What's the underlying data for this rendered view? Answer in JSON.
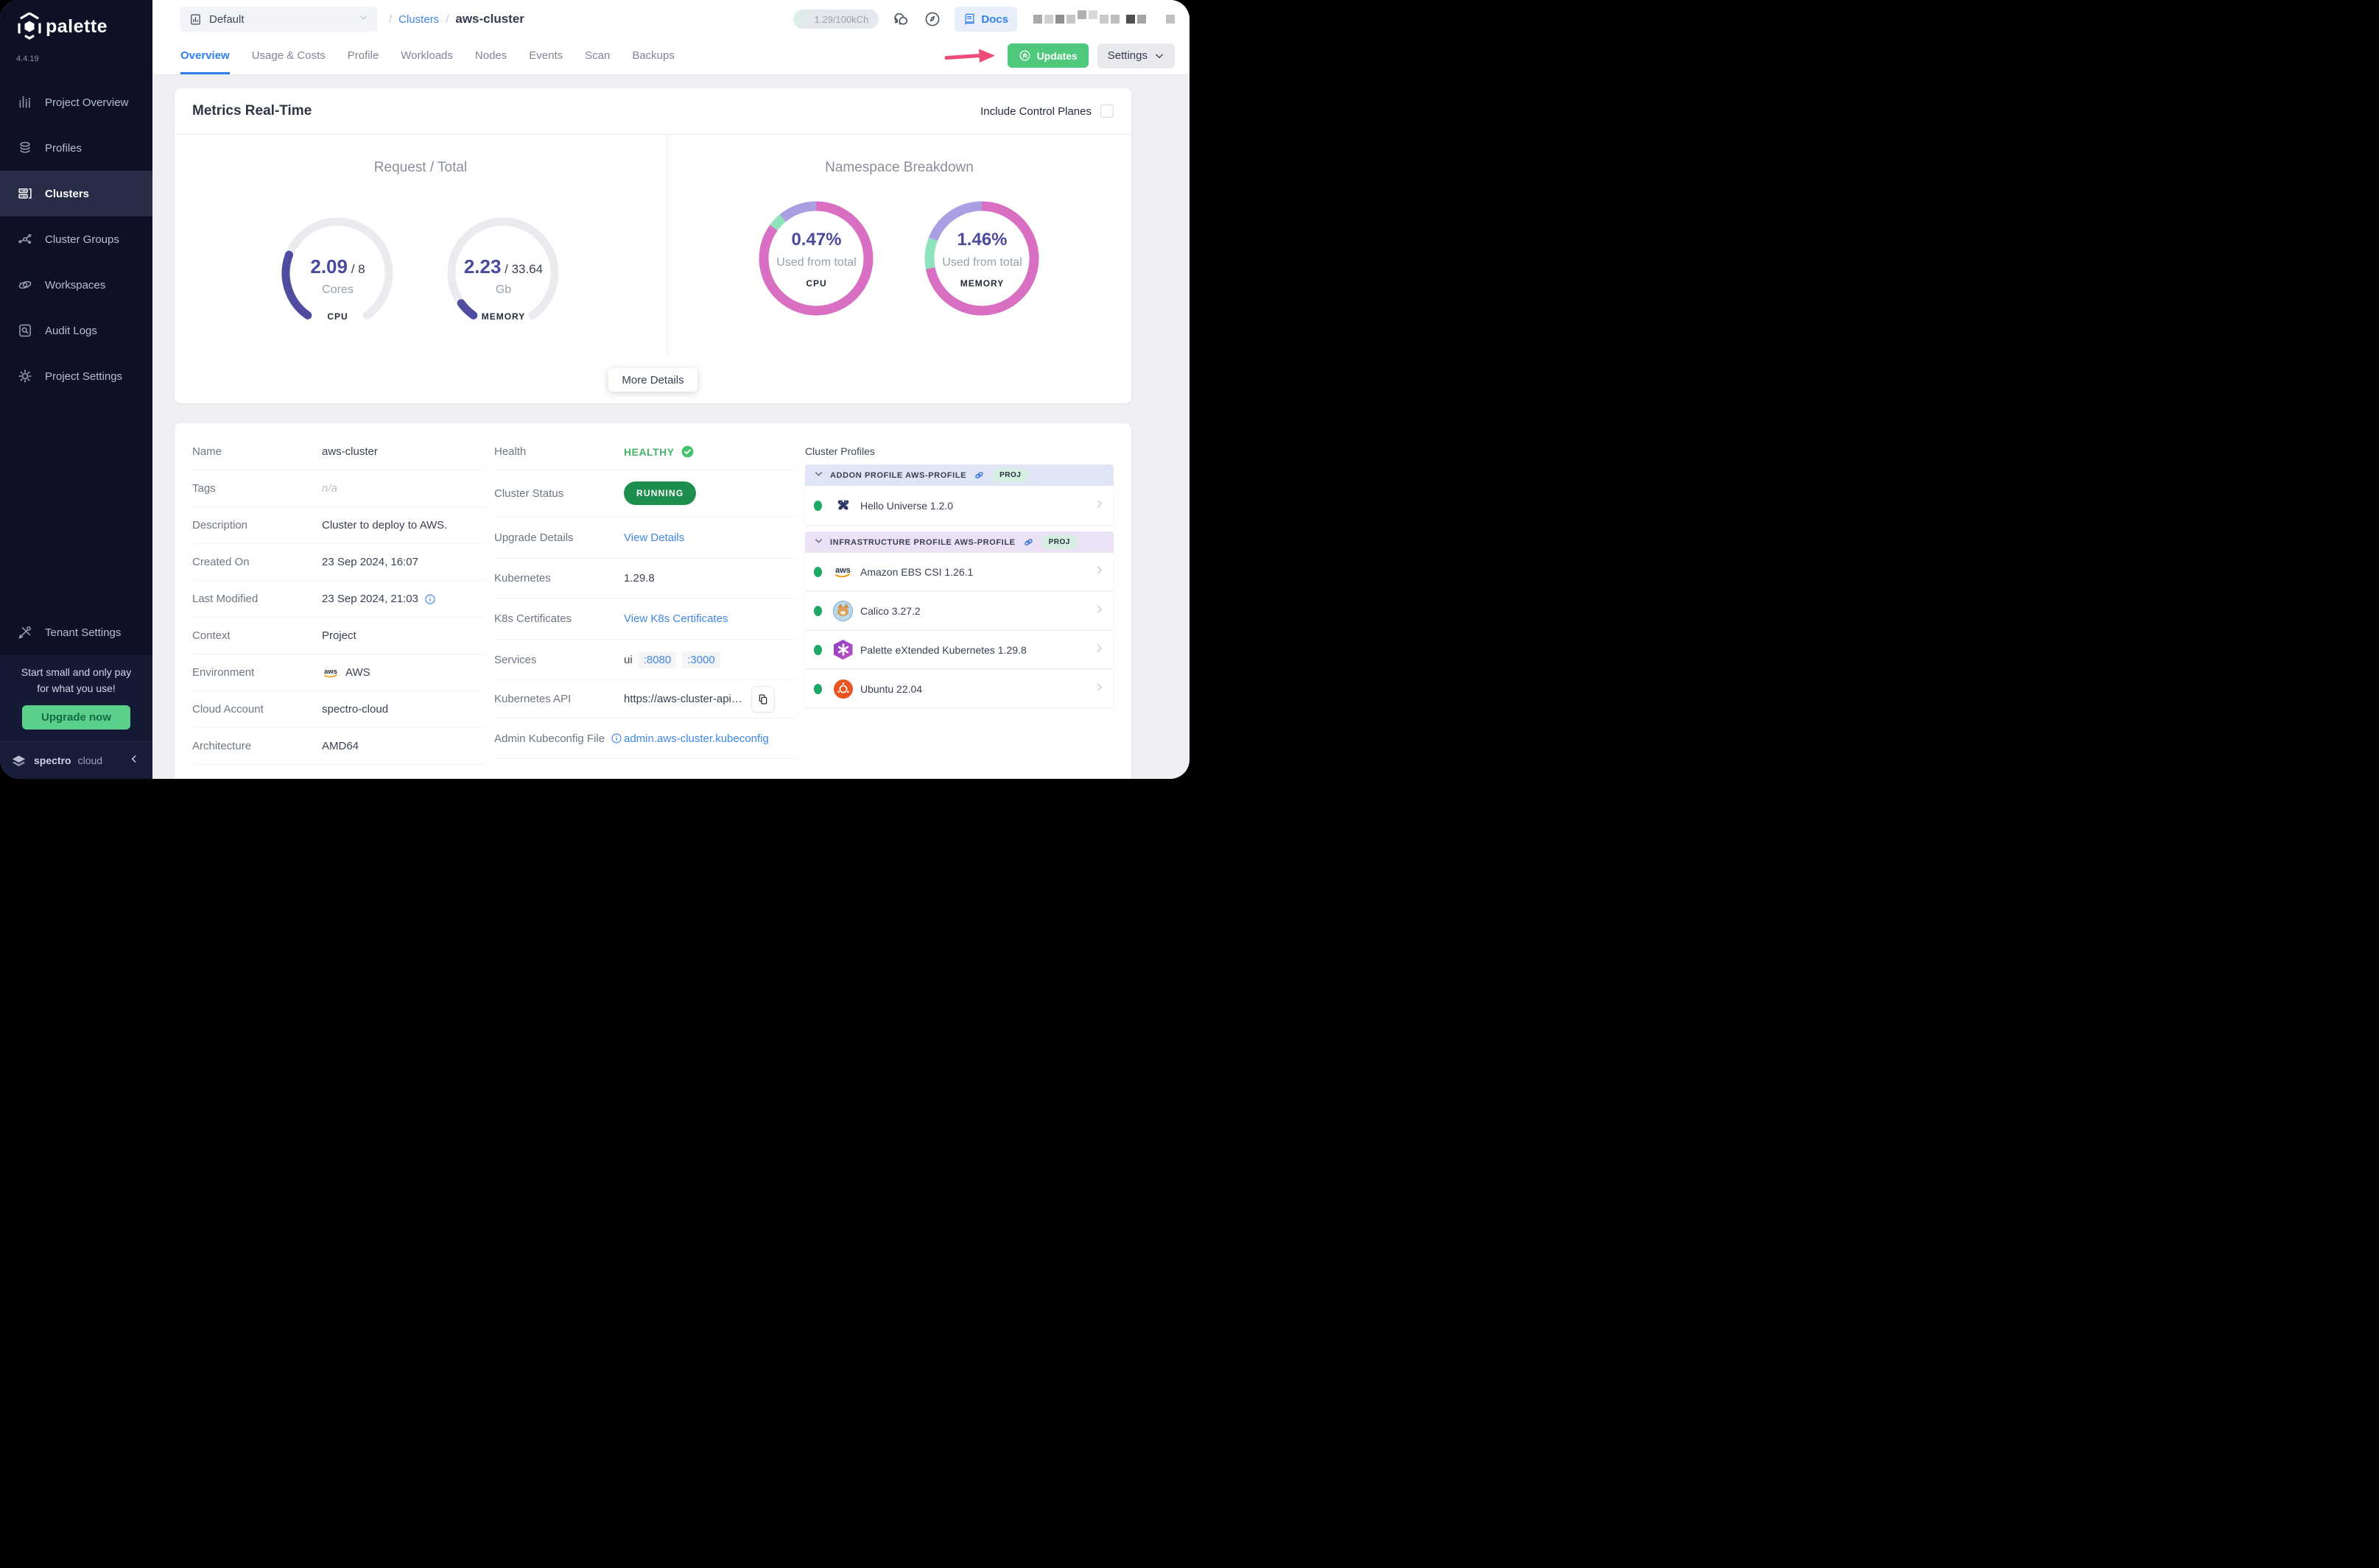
{
  "colors": {
    "sidebar_bg": "#0e1126",
    "accent_green": "#4ec97b",
    "status_green": "#1e8e4e",
    "link_blue": "#3f87e5",
    "tab_blue": "#2f80ed",
    "gauge_purple": "#4f4d9f",
    "donut_pink": "#d96fc3",
    "donut_lavender": "#ab9fe3",
    "donut_green": "#8fe3ba",
    "annotation_pink": "#ed4c78",
    "fab_purple": "#5457c5",
    "upgrade_green": "#5bd08d"
  },
  "brand": {
    "name": "palette",
    "version": "4.4.19",
    "footer_1": "spectro",
    "footer_2": "cloud"
  },
  "sidebar": {
    "items": [
      {
        "label": "Project Overview"
      },
      {
        "label": "Profiles"
      },
      {
        "label": "Clusters"
      },
      {
        "label": "Cluster Groups"
      },
      {
        "label": "Workspaces"
      },
      {
        "label": "Audit Logs"
      },
      {
        "label": "Project Settings"
      }
    ],
    "tenant": "Tenant Settings",
    "promo": {
      "text_line1": "Start small and only pay",
      "text_line2": "for what you use!",
      "cta": "Upgrade now"
    }
  },
  "topbar": {
    "project": "Default",
    "slash": "/",
    "breadcrumb_root": "Clusters",
    "breadcrumb_current": "aws-cluster",
    "usage": "1.29/100kCh",
    "docs": "Docs"
  },
  "tabs": [
    {
      "label": "Overview"
    },
    {
      "label": "Usage & Costs"
    },
    {
      "label": "Profile"
    },
    {
      "label": "Workloads"
    },
    {
      "label": "Nodes"
    },
    {
      "label": "Events"
    },
    {
      "label": "Scan"
    },
    {
      "label": "Backups"
    }
  ],
  "actions": {
    "updates": "Updates",
    "settings": "Settings"
  },
  "metrics": {
    "title": "Metrics Real-Time",
    "include": "Include Control Planes",
    "left_title": "Request / Total",
    "right_title": "Namespace Breakdown",
    "more": "More Details",
    "separator": " / ",
    "cpu": {
      "value": "2.09",
      "total": "8",
      "unit": "Cores",
      "label": "CPU"
    },
    "memory": {
      "value": "2.23",
      "total": "33.64",
      "unit": "Gb",
      "label": "MEMORY"
    },
    "ns_cpu": {
      "value": "0.47%",
      "caption": "Used from total",
      "label": "CPU"
    },
    "ns_memory": {
      "value": "1.46%",
      "caption": "Used from total",
      "label": "MEMORY"
    }
  },
  "viz": {
    "gauges": [
      {
        "el": "gauge-cpu",
        "value": 2.09,
        "total": 8
      },
      {
        "el": "gauge-mem",
        "value": 2.23,
        "total": 33.64
      }
    ],
    "donuts": [
      {
        "el": "donut-cpu",
        "segments": [
          {
            "color": "#d96fc3",
            "frac": 0.85
          },
          {
            "color": "#8fe3ba",
            "frac": 0.04
          },
          {
            "color": "#ab9fe3",
            "frac": 0.11
          }
        ]
      },
      {
        "el": "donut-mem",
        "segments": [
          {
            "color": "#d96fc3",
            "frac": 0.72
          },
          {
            "color": "#8fe3ba",
            "frac": 0.09
          },
          {
            "color": "#ab9fe3",
            "frac": 0.19
          }
        ]
      }
    ]
  },
  "details": {
    "left": {
      "name_label": "Name",
      "name": "aws-cluster",
      "tags_label": "Tags",
      "tags": "n/a",
      "desc_label": "Description",
      "desc": "Cluster to deploy to AWS.",
      "created_label": "Created On",
      "created": "23 Sep 2024, 16:07",
      "modified_label": "Last Modified",
      "modified": "23 Sep 2024, 21:03",
      "context_label": "Context",
      "context": "Project",
      "env_label": "Environment",
      "env": "AWS",
      "account_label": "Cloud Account",
      "account": "spectro-cloud",
      "arch_label": "Architecture",
      "arch": "AMD64"
    },
    "mid": {
      "health_label": "Health",
      "health": "HEALTHY",
      "status_label": "Cluster Status",
      "status": "RUNNING",
      "upgrade_label": "Upgrade Details",
      "upgrade": "View Details",
      "k8s_label": "Kubernetes",
      "k8s": "1.29.8",
      "certs_label": "K8s Certificates",
      "certs": "View K8s Certificates",
      "services_label": "Services",
      "services_name": "ui",
      "services_ports": [
        ":8080",
        ":3000"
      ],
      "api_label": "Kubernetes API",
      "api": "https://aws-cluster-apiserve...",
      "kubeconfig_label": "Admin Kubeconfig File",
      "kubeconfig": "admin.aws-cluster.kubeconfig"
    }
  },
  "profiles": {
    "title": "Cluster Profiles",
    "groups": [
      {
        "header": "ADDON PROFILE AWS-PROFILE",
        "badge": "PROJ",
        "items": [
          {
            "name": "Hello Universe 1.2.0",
            "icon": "butterfly"
          }
        ]
      },
      {
        "header": "INFRASTRUCTURE PROFILE AWS-PROFILE",
        "badge": "PROJ",
        "items": [
          {
            "name": "Amazon EBS CSI 1.26.1",
            "icon": "aws"
          },
          {
            "name": "Calico 3.27.2",
            "icon": "calico"
          },
          {
            "name": "Palette eXtended Kubernetes 1.29.8",
            "icon": "pxk-hexagon"
          },
          {
            "name": "Ubuntu 22.04",
            "icon": "ubuntu"
          }
        ]
      }
    ]
  }
}
